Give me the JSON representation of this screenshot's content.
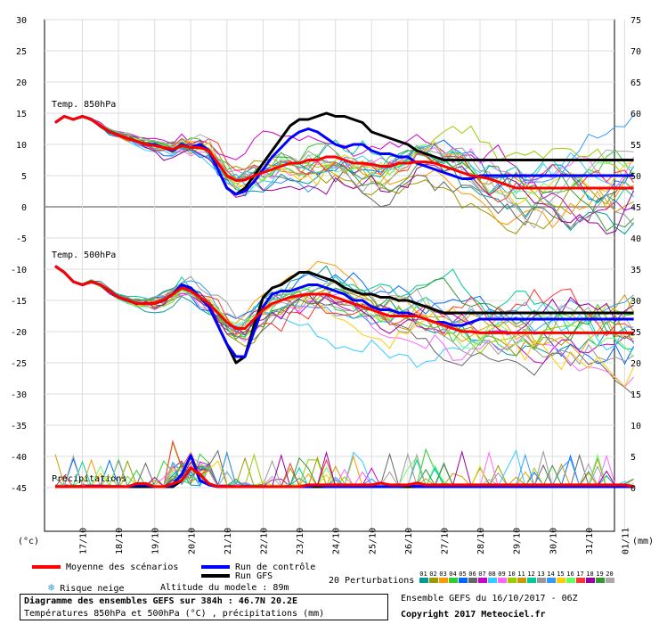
{
  "chart_data": {
    "type": "line",
    "left_ticks": [
      "30",
      "25",
      "20",
      "15",
      "10",
      "5",
      "0",
      "-5",
      "-10",
      "-15",
      "-20",
      "-25",
      "-30",
      "-35",
      "-40",
      "-45"
    ],
    "right_ticks": [
      "75",
      "70",
      "65",
      "60",
      "55",
      "50",
      "45",
      "40",
      "35",
      "30",
      "25",
      "20",
      "15",
      "10",
      "5",
      "0"
    ],
    "left_unit": "(°c)",
    "right_unit": "(mm)",
    "x_labels": [
      "17/10",
      "18/10",
      "19/10",
      "20/10",
      "21/10",
      "22/10",
      "23/10",
      "24/10",
      "25/10",
      "26/10",
      "27/10",
      "28/10",
      "29/10",
      "30/10",
      "31/10",
      "01/11"
    ],
    "panel_labels": {
      "t850": "Temp. 850hPa",
      "t500": "Temp. 500hPa",
      "precip": "Précipitations"
    },
    "x_days": [
      0,
      0.25,
      0.5,
      0.75,
      1,
      1.25,
      1.5,
      1.75,
      2,
      2.25,
      2.5,
      2.75,
      3,
      3.25,
      3.5,
      3.75,
      4,
      4.25,
      4.5,
      4.75,
      5,
      5.25,
      5.5,
      5.75,
      6,
      6.25,
      6.5,
      6.75,
      7,
      7.25,
      7.5,
      7.75,
      8,
      8.25,
      8.5,
      8.75,
      9,
      9.25,
      9.5,
      9.75,
      10,
      10.25,
      10.5,
      10.75,
      11,
      11.25,
      11.5,
      11.75,
      12,
      12.25,
      12.5,
      12.75,
      13,
      13.25,
      13.5,
      13.75,
      14,
      14.25,
      14.5,
      14.75,
      15,
      15.25,
      15.5,
      15.75,
      16
    ],
    "series": [
      {
        "name": "Moyenne des scénarios",
        "color": "#ff0000",
        "width": 3,
        "t850": [
          13.5,
          14.5,
          14,
          14.5,
          14,
          13,
          12,
          11.5,
          11,
          10.5,
          10,
          9.8,
          9.5,
          9.2,
          9.8,
          9.5,
          9.5,
          9,
          7,
          5,
          4.2,
          4.3,
          5,
          5.5,
          6,
          6.5,
          7,
          7,
          7.5,
          7.5,
          8,
          8,
          7.5,
          7,
          7,
          6.8,
          6.5,
          6.5,
          7,
          7,
          7.2,
          7.2,
          7,
          6.5,
          6,
          5.5,
          5,
          4.8,
          4.5,
          4,
          3.5,
          3,
          3,
          3,
          3,
          3,
          3,
          3,
          3,
          3,
          3,
          3,
          3,
          3,
          3
        ],
        "t500": [
          -9.5,
          -10.5,
          -12,
          -12.5,
          -12,
          -12.5,
          -13.5,
          -14.5,
          -15,
          -15.5,
          -15.5,
          -15.5,
          -15,
          -14,
          -13,
          -13.5,
          -14.5,
          -15.5,
          -17,
          -18.5,
          -19.5,
          -19.5,
          -18,
          -16.5,
          -15.5,
          -15,
          -14.5,
          -14.2,
          -14,
          -14,
          -14,
          -14.5,
          -15,
          -15.5,
          -16,
          -16.5,
          -17,
          -17.5,
          -17.5,
          -17.5,
          -17.5,
          -18,
          -18.5,
          -19,
          -19.5,
          -20,
          -20,
          -20.2,
          -20.2,
          -20.2,
          -20.2,
          -20.2,
          -20.2,
          -20.2,
          -20.2,
          -20.2,
          -20.2,
          -20.2,
          -20.2,
          -20.2,
          -20.2,
          -20.2,
          -20.2,
          -20.2,
          -20.2
        ],
        "precip": [
          0,
          0,
          0,
          0,
          0,
          0,
          0,
          0,
          0,
          0.5,
          0.5,
          0,
          0,
          0.5,
          1,
          3,
          2,
          0.5,
          0,
          0,
          0,
          0,
          0,
          0,
          0,
          0,
          0,
          0,
          0.3,
          0.3,
          0.3,
          0.3,
          0.3,
          0.3,
          0.3,
          0.3,
          0.6,
          0.3,
          0.3,
          0.3,
          0.6,
          0.3,
          0.3,
          0.3,
          0.3,
          0.3,
          0.3,
          0.3,
          0.3,
          0.3,
          0.3,
          0.3,
          0.3,
          0.3,
          0.3,
          0.3,
          0.3,
          0.3,
          0.3,
          0.3,
          0.3,
          0.3,
          0.3,
          0.3,
          0
        ]
      },
      {
        "name": "Run de contrôle",
        "color": "#0000ff",
        "width": 3,
        "t850": [
          13.5,
          14.5,
          14,
          14.5,
          14,
          13,
          12,
          11.5,
          11,
          10.5,
          10,
          10,
          9.5,
          9,
          10,
          9.5,
          10,
          9,
          6,
          3,
          2,
          2.5,
          4,
          6,
          8,
          9.5,
          11,
          12,
          12.5,
          12,
          11,
          10,
          9.5,
          10,
          10,
          9,
          8.5,
          8.5,
          8,
          8,
          7,
          6.5,
          6,
          5.5,
          5,
          4.5,
          4.5,
          5,
          5,
          5,
          5,
          5,
          5,
          5,
          5,
          5,
          5,
          5,
          5,
          5,
          5,
          5,
          5,
          5,
          5
        ],
        "t500": [
          -9.5,
          -10.5,
          -12,
          -12.5,
          -12,
          -12.5,
          -13.5,
          -14.5,
          -15,
          -15.5,
          -15.5,
          -15.5,
          -15,
          -14,
          -12.5,
          -13,
          -14.5,
          -16,
          -19,
          -22,
          -24,
          -24,
          -20,
          -16,
          -14,
          -13.5,
          -13.5,
          -13,
          -12.5,
          -12.5,
          -13,
          -13.5,
          -14,
          -15,
          -15,
          -16,
          -16.5,
          -16.5,
          -17,
          -17,
          -17.5,
          -18,
          -18.5,
          -18.5,
          -19,
          -19,
          -18.5,
          -18,
          -18,
          -18,
          -18,
          -18,
          -18,
          -18,
          -18,
          -18,
          -18,
          -18,
          -18,
          -18,
          -18,
          -18,
          -18,
          -18,
          -18
        ],
        "precip": [
          0,
          0,
          0,
          0,
          0,
          0,
          0,
          0,
          0,
          0.3,
          0.3,
          0,
          0,
          0.3,
          2,
          5,
          1,
          0.3,
          0,
          0,
          0,
          0,
          0,
          0,
          0,
          0,
          0,
          0,
          0,
          0.3,
          0,
          0,
          0,
          0,
          0,
          0,
          0,
          0,
          0,
          0.3,
          0,
          0,
          0,
          0,
          0,
          0,
          0,
          0,
          0,
          0,
          0,
          0,
          0,
          0,
          0,
          0,
          0,
          0,
          0,
          0,
          0,
          0,
          0,
          0,
          0
        ]
      },
      {
        "name": "Run GFS",
        "color": "#000000",
        "width": 3,
        "t850": [
          13.5,
          14.5,
          14,
          14.5,
          14,
          13,
          12,
          11.5,
          11,
          10.5,
          10,
          10,
          9.5,
          9,
          10,
          9.5,
          10,
          9,
          6,
          3,
          2,
          3,
          5,
          7,
          9,
          11,
          13,
          14,
          14,
          14.5,
          15,
          14.5,
          14.5,
          14,
          13.5,
          12,
          11.5,
          11,
          10.5,
          10,
          9,
          8.5,
          8,
          7.5,
          7.5,
          7.5,
          7.5,
          7.5,
          7.5,
          7.5,
          7.5,
          7.5,
          7.5,
          7.5,
          7.5,
          7.5,
          7.5,
          7.5,
          7.5,
          7.5,
          7.5,
          7.5,
          7.5,
          7.5,
          7.5
        ],
        "t500": [
          -9.5,
          -10.5,
          -12,
          -12.5,
          -12,
          -12.5,
          -13.5,
          -14.5,
          -15,
          -15.5,
          -15.5,
          -15.5,
          -15,
          -14,
          -12.5,
          -13,
          -14.5,
          -16,
          -19,
          -22,
          -25,
          -24,
          -19,
          -14.5,
          -13,
          -12.5,
          -11.5,
          -10.5,
          -10.5,
          -11,
          -11.5,
          -12,
          -13,
          -13.5,
          -14,
          -14,
          -14.5,
          -14.5,
          -15,
          -15,
          -15.5,
          -16,
          -16.5,
          -17,
          -17,
          -17,
          -17,
          -17,
          -17,
          -17,
          -17,
          -17,
          -17,
          -17,
          -17,
          -17,
          -17,
          -17,
          -17,
          -17,
          -17,
          -17,
          -17,
          -17,
          -17
        ],
        "precip": [
          0,
          0,
          0,
          0,
          0,
          0,
          0,
          0,
          0,
          0,
          0,
          0,
          0,
          0,
          1,
          3,
          2,
          0.5,
          0,
          0,
          0,
          0,
          0,
          0,
          0,
          0,
          0,
          0,
          0,
          0,
          0,
          0,
          0,
          0,
          0,
          0,
          0,
          0,
          0,
          0,
          0,
          0,
          0,
          0,
          0,
          0,
          0,
          0,
          0,
          0,
          0,
          0,
          0,
          0,
          0,
          0,
          0,
          0,
          0,
          0,
          0,
          0,
          0,
          0,
          0
        ]
      }
    ],
    "perturbation_colors": [
      "#009999",
      "#999900",
      "#ff9900",
      "#33cc33",
      "#0066ff",
      "#666666",
      "#cc00cc",
      "#33ccff",
      "#ff66ff",
      "#99cc00",
      "#cc9900",
      "#00cc99",
      "#999999",
      "#3399ff",
      "#ffcc00",
      "#66ff66",
      "#ff3333",
      "#990099",
      "#339933",
      "#aaaaaa"
    ],
    "perturbation_numbers": [
      "01",
      "02",
      "03",
      "04",
      "05",
      "06",
      "07",
      "08",
      "09",
      "10",
      "11",
      "12",
      "13",
      "14",
      "15",
      "16",
      "17",
      "18",
      "19",
      "20"
    ]
  },
  "legend": {
    "mean": "Moyenne des scénarios",
    "control": "Run de contrôle",
    "gfs": "Run GFS",
    "snow": "Risque neige",
    "altitude": "Altitude du modele : 89m",
    "perturbations": "20 Perturbations"
  },
  "footer": {
    "title": "Diagramme des ensembles GEFS sur 384h : 46.7N 20.2E",
    "subtitle": "Températures 850hPa et 500hPa (°C) , précipitations (mm)",
    "run": "Ensemble GEFS du 16/10/2017 - 06Z",
    "copyright": "Copyright 2017 Meteociel.fr"
  }
}
